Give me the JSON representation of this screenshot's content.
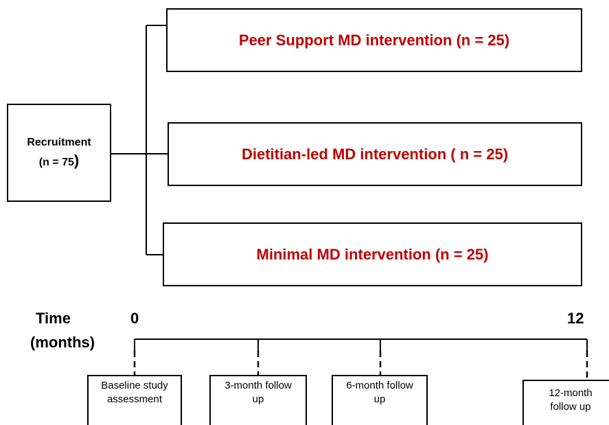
{
  "recruitment": {
    "label": "Recruitment",
    "count_open": "(n = 75",
    "count_close": ")"
  },
  "arms": [
    {
      "label": "Peer Support MD intervention (n = 25)"
    },
    {
      "label": "Dietitian-led MD intervention ( n = 25)"
    },
    {
      "label": "Minimal MD intervention (n = 25)"
    }
  ],
  "timeline": {
    "axis_label_line1": "Time",
    "axis_label_line2": "(months)",
    "start": "0",
    "end": "12"
  },
  "followups": [
    {
      "line1": "Baseline study",
      "line2": "assessment"
    },
    {
      "line1": "3-month follow",
      "line2": "up"
    },
    {
      "line1": "6-month follow",
      "line2": "up"
    },
    {
      "line1": "12-month",
      "line2": "follow up"
    }
  ],
  "colors": {
    "arm_text": "#c00000",
    "lines": "#000000"
  }
}
